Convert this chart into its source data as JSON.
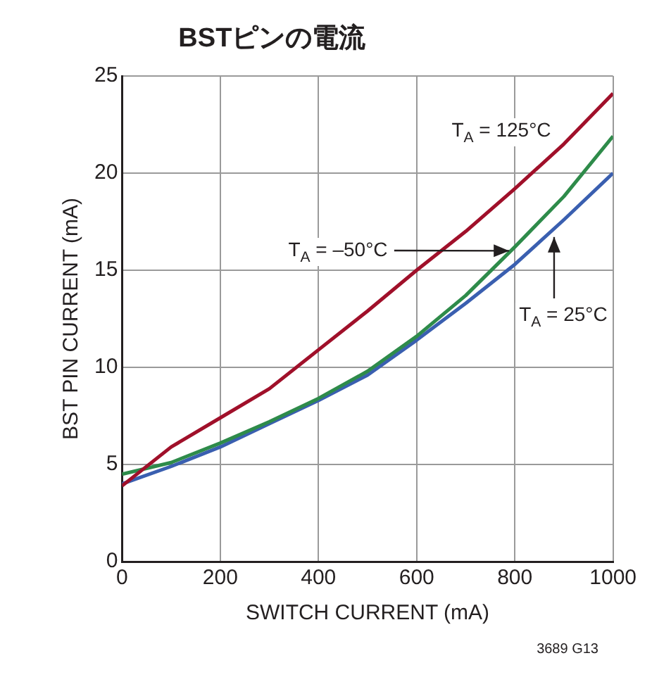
{
  "chart_data": {
    "type": "line",
    "title": "BSTピンの電流",
    "xlabel": "SWITCH CURRENT (mA)",
    "ylabel": "BST PIN CURRENT (mA)",
    "x": [
      0,
      100,
      200,
      300,
      400,
      500,
      600,
      700,
      800,
      900,
      1000
    ],
    "series": [
      {
        "color": "#a0102a",
        "values": [
          3.9,
          5.9,
          7.4,
          8.9,
          10.9,
          12.9,
          15,
          17,
          19.2,
          21.5,
          24.1
        ]
      },
      {
        "color": "#2e8b4a",
        "values": [
          4.5,
          5.1,
          6.1,
          7.2,
          8.4,
          9.8,
          11.6,
          13.7,
          16.2,
          18.8,
          21.9
        ]
      },
      {
        "color": "#3a5fb0",
        "values": [
          4.0,
          4.9,
          5.9,
          7.1,
          8.3,
          9.6,
          11.4,
          13.3,
          15.3,
          17.6,
          20
        ]
      }
    ],
    "xlim": [
      0,
      1000
    ],
    "xticks": [
      0,
      200,
      400,
      600,
      800,
      1000
    ],
    "ylim": [
      0,
      25
    ],
    "yticks": [
      0,
      5,
      10,
      15,
      20,
      25
    ],
    "grid": true,
    "legend": false,
    "marker": "none",
    "line_style": "solid",
    "annotations": [
      "T$_{A}$ = 125°C",
      {
        "text": "T$_{A}$ = –50°C",
        "x": 800,
        "y": 16.0
      },
      {
        "text": "T$_{A}$ = 25°C",
        "x": 880,
        "y": 17.0
      },
      "3689 G13"
    ]
  }
}
